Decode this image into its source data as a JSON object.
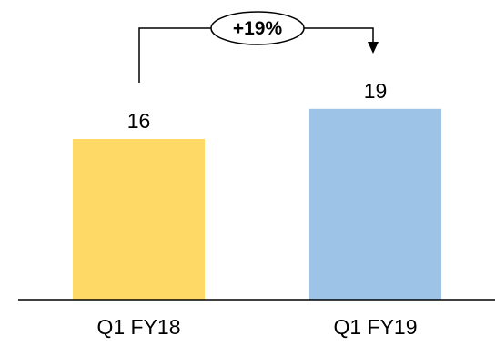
{
  "chart_data": {
    "type": "bar",
    "categories": [
      "Q1 FY18",
      "Q1 FY19"
    ],
    "values": [
      16,
      19
    ],
    "ylim": [
      0,
      20
    ],
    "grid": false,
    "colors": [
      "#FFD966",
      "#9DC3E6"
    ],
    "annotation": {
      "label": "+19%",
      "from": "Q1 FY18",
      "to": "Q1 FY19"
    }
  }
}
